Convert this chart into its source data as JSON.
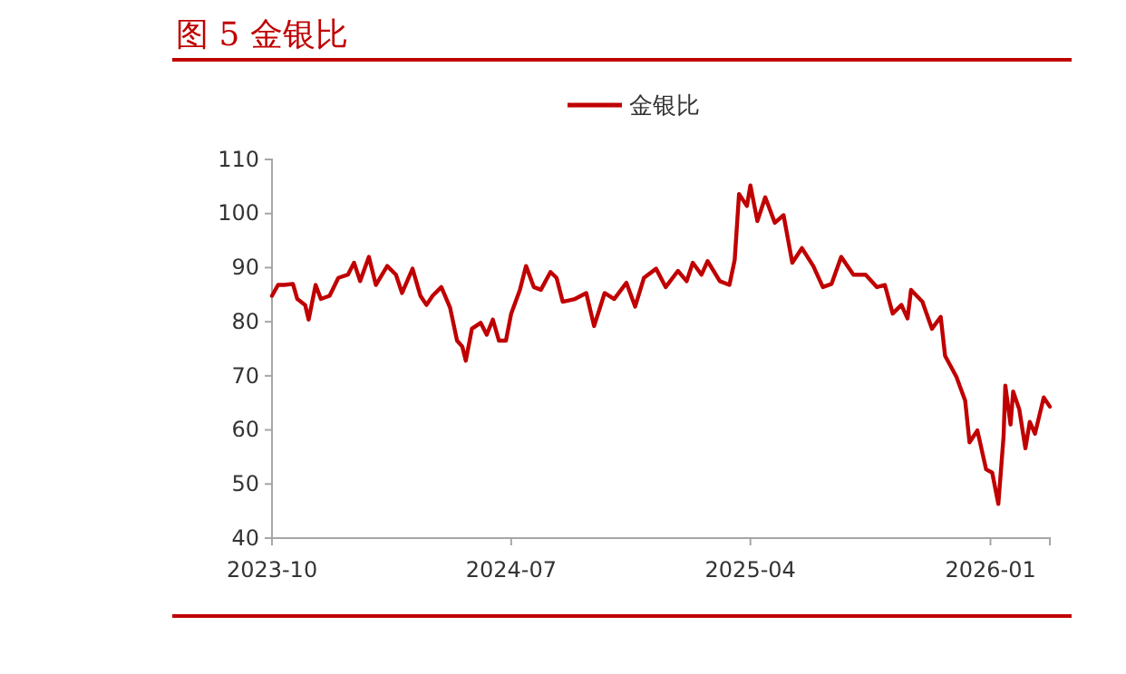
{
  "chart_data": {
    "type": "line",
    "title": "图 5 金银比",
    "legend": "top",
    "grid": false,
    "xlim": [
      "2023-10-01",
      "2026-03-10"
    ],
    "xticks": [
      {
        "value": "2023-10-01",
        "label": "2023-10"
      },
      {
        "value": "2024-07-01",
        "label": "2024-07"
      },
      {
        "value": "2025-04-01",
        "label": "2025-04"
      },
      {
        "value": "2026-01-01",
        "label": "2026-01"
      }
    ],
    "ylim": [
      40,
      110
    ],
    "yticks": [
      40,
      50,
      60,
      70,
      80,
      90,
      100,
      110
    ],
    "x": [
      "2023-10-01",
      "2023-10-08",
      "2023-10-15",
      "2023-10-25",
      "2023-10-30",
      "2023-11-08",
      "2023-11-12",
      "2023-11-20",
      "2023-11-26",
      "2023-12-06",
      "2023-12-16",
      "2023-12-27",
      "2024-01-03",
      "2024-01-10",
      "2024-01-20",
      "2024-01-28",
      "2024-02-10",
      "2024-02-20",
      "2024-02-27",
      "2024-03-10",
      "2024-03-19",
      "2024-03-26",
      "2024-04-02",
      "2024-04-12",
      "2024-04-22",
      "2024-04-30",
      "2024-05-06",
      "2024-05-10",
      "2024-05-17",
      "2024-05-27",
      "2024-06-03",
      "2024-06-10",
      "2024-06-17",
      "2024-06-25",
      "2024-07-01",
      "2024-07-11",
      "2024-07-18",
      "2024-07-27",
      "2024-08-04",
      "2024-08-15",
      "2024-08-22",
      "2024-08-29",
      "2024-09-12",
      "2024-09-25",
      "2024-10-04",
      "2024-10-16",
      "2024-10-27",
      "2024-11-10",
      "2024-11-20",
      "2024-11-30",
      "2024-12-14",
      "2024-12-25",
      "2025-01-08",
      "2025-01-18",
      "2025-01-25",
      "2025-02-04",
      "2025-02-11",
      "2025-02-25",
      "2025-03-08",
      "2025-03-14",
      "2025-03-19",
      "2025-03-28",
      "2025-04-01",
      "2025-04-09",
      "2025-04-18",
      "2025-04-29",
      "2025-05-09",
      "2025-05-19",
      "2025-05-30",
      "2025-06-12",
      "2025-06-23",
      "2025-07-03",
      "2025-07-14",
      "2025-07-28",
      "2025-08-11",
      "2025-08-24",
      "2025-09-02",
      "2025-09-11",
      "2025-09-21",
      "2025-09-28",
      "2025-10-02",
      "2025-10-15",
      "2025-10-26",
      "2025-11-05",
      "2025-11-10",
      "2025-11-23",
      "2025-12-03",
      "2025-12-08",
      "2025-12-17",
      "2025-12-27",
      "2026-01-03",
      "2026-01-10",
      "2026-01-16",
      "2026-01-18",
      "2026-01-24",
      "2026-01-27",
      "2026-02-03",
      "2026-02-10",
      "2026-02-15",
      "2026-02-21",
      "2026-03-03",
      "2026-03-10"
    ],
    "series": [
      {
        "name": "金银比",
        "color": "#c00000",
        "values": [
          84.8,
          86.8,
          86.8,
          87,
          84.2,
          83.1,
          80.4,
          86.8,
          84.2,
          84.8,
          88.1,
          88.7,
          90.9,
          87.5,
          92,
          86.8,
          90.3,
          88.7,
          85.3,
          89.8,
          84.8,
          83.1,
          84.8,
          86.4,
          82.6,
          76.5,
          75.4,
          72.8,
          78.7,
          79.8,
          77.6,
          80.4,
          76.5,
          76.5,
          81.5,
          85.9,
          90.3,
          86.4,
          85.9,
          89.2,
          88.1,
          83.7,
          84.2,
          85.3,
          79.2,
          85.3,
          84.2,
          87.2,
          82.8,
          88.1,
          89.8,
          86.4,
          89.4,
          87.5,
          90.9,
          88.7,
          91.2,
          87.5,
          86.8,
          91.4,
          103.6,
          101.4,
          105.2,
          98.6,
          103,
          98.3,
          99.7,
          90.9,
          93.6,
          90.3,
          86.4,
          87,
          92,
          88.7,
          88.7,
          86.4,
          86.8,
          81.5,
          83.1,
          80.6,
          85.9,
          83.7,
          78.7,
          80.9,
          73.7,
          69.8,
          65.4,
          57.7,
          59.9,
          52.7,
          52.1,
          46.3,
          58.8,
          68.2,
          61,
          67.1,
          63.8,
          56.6,
          61.5,
          59.3,
          66,
          64.3
        ]
      }
    ]
  }
}
